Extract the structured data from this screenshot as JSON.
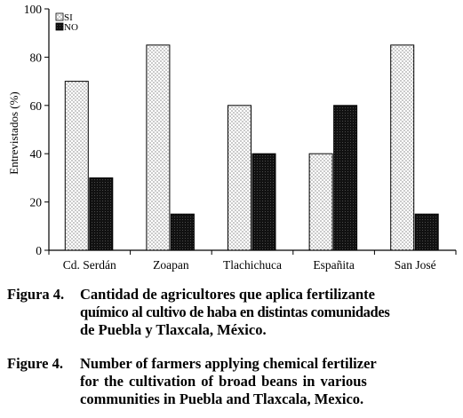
{
  "chart_data": {
    "type": "bar",
    "ylabel": "Entrevistados (%)",
    "xlabel": "",
    "title": "",
    "ylim": [
      0,
      100
    ],
    "yticks": [
      0,
      20,
      40,
      60,
      80,
      100
    ],
    "categories": [
      "Cd. Serdán",
      "Zoapan",
      "Tlachichuca",
      "Españita",
      "San José"
    ],
    "series": [
      {
        "name": "SI",
        "values": [
          70,
          85,
          60,
          40,
          85
        ],
        "fill": "dotted",
        "color": "#ffffff"
      },
      {
        "name": "NO",
        "values": [
          30,
          15,
          40,
          60,
          15
        ],
        "fill": "hatched",
        "color": "#1a1a1a"
      }
    ],
    "grid": false,
    "legend_position": "top-left"
  },
  "captions": {
    "es": {
      "label": "Figura 4.",
      "lines": [
        "Cantidad de agricultores que aplica fertilizante",
        "químico al cultivo de haba en distintas comunidades",
        "de Puebla y Tlaxcala, México."
      ]
    },
    "en": {
      "label": "Figure 4.",
      "lines": [
        "Number of farmers applying chemical fertilizer",
        "for the cultivation of broad beans in various",
        "communities in Puebla and Tlaxcala, Mexico."
      ]
    }
  }
}
